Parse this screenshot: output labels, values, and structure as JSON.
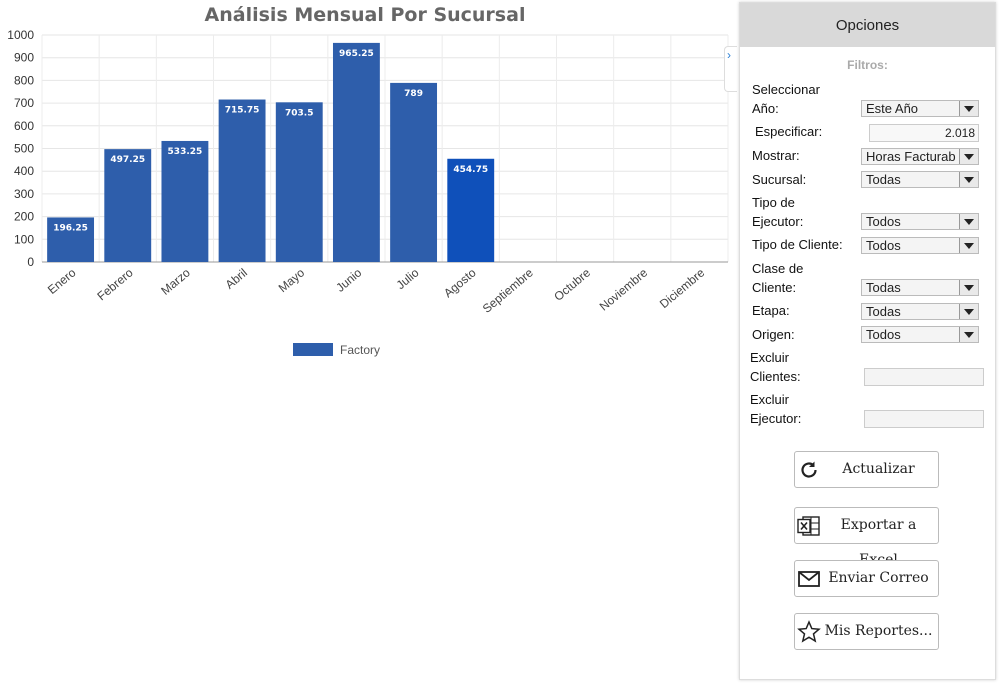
{
  "chart_data": {
    "type": "bar",
    "title": "Análisis Mensual Por Sucursal",
    "categories": [
      "Enero",
      "Febrero",
      "Marzo",
      "Abril",
      "Mayo",
      "Junio",
      "Julio",
      "Agosto",
      "Septiembre",
      "Octubre",
      "Noviembre",
      "Diciembre"
    ],
    "series": [
      {
        "name": "Factory",
        "values": [
          196.25,
          497.25,
          533.25,
          715.75,
          703.5,
          965.25,
          789,
          454.75,
          null,
          null,
          null,
          null
        ]
      }
    ],
    "data_labels": [
      "196.25",
      "497.25",
      "533.25",
      "715.75",
      "703.5",
      "965.25",
      "789",
      "454.75"
    ],
    "y_ticks": [
      0,
      100,
      200,
      300,
      400,
      500,
      600,
      700,
      800,
      900,
      1000
    ],
    "ylim": [
      0,
      1000
    ],
    "grid": true,
    "legend_position": "bottom",
    "bar_color": "#2e5eab",
    "highlight_color": "#0f50ba",
    "highlight_index": 7
  },
  "panel": {
    "title": "Opciones",
    "section": "Filtros:",
    "seleccionar": "Seleccionar",
    "ano_label": "Año:",
    "ano_value": "Este Año",
    "especificar_label": "Especificar:",
    "especificar_value": "2.018",
    "mostrar_label": "Mostrar:",
    "mostrar_value": "Horas Facturables",
    "sucursal_label": "Sucursal:",
    "sucursal_value": "Todas",
    "tipo_de": "Tipo de",
    "ejecutor_label": "Ejecutor:",
    "tipo_ejecutor_value": "Todos",
    "tipo_cliente_label": "Tipo de Cliente:",
    "tipo_cliente_value": "Todos",
    "clase_de": "Clase de",
    "cliente_label": "Cliente:",
    "clase_cliente_value": "Todas",
    "etapa_label": "Etapa:",
    "etapa_value": "Todas",
    "origen_label": "Origen:",
    "origen_value": "Todos",
    "excluir": "Excluir",
    "clientes_label": "Clientes:",
    "excluir2": "Excluir",
    "ejecutor2_label": "Ejecutor:",
    "btn_actualizar": "Actualizar",
    "btn_excel": "Exportar a Excel",
    "btn_correo": "Enviar Correo",
    "btn_reportes": "Mis Reportes...",
    "icons": [
      "refresh-icon",
      "excel-icon",
      "mail-icon",
      "star-icon",
      "chevron-right-icon"
    ]
  }
}
